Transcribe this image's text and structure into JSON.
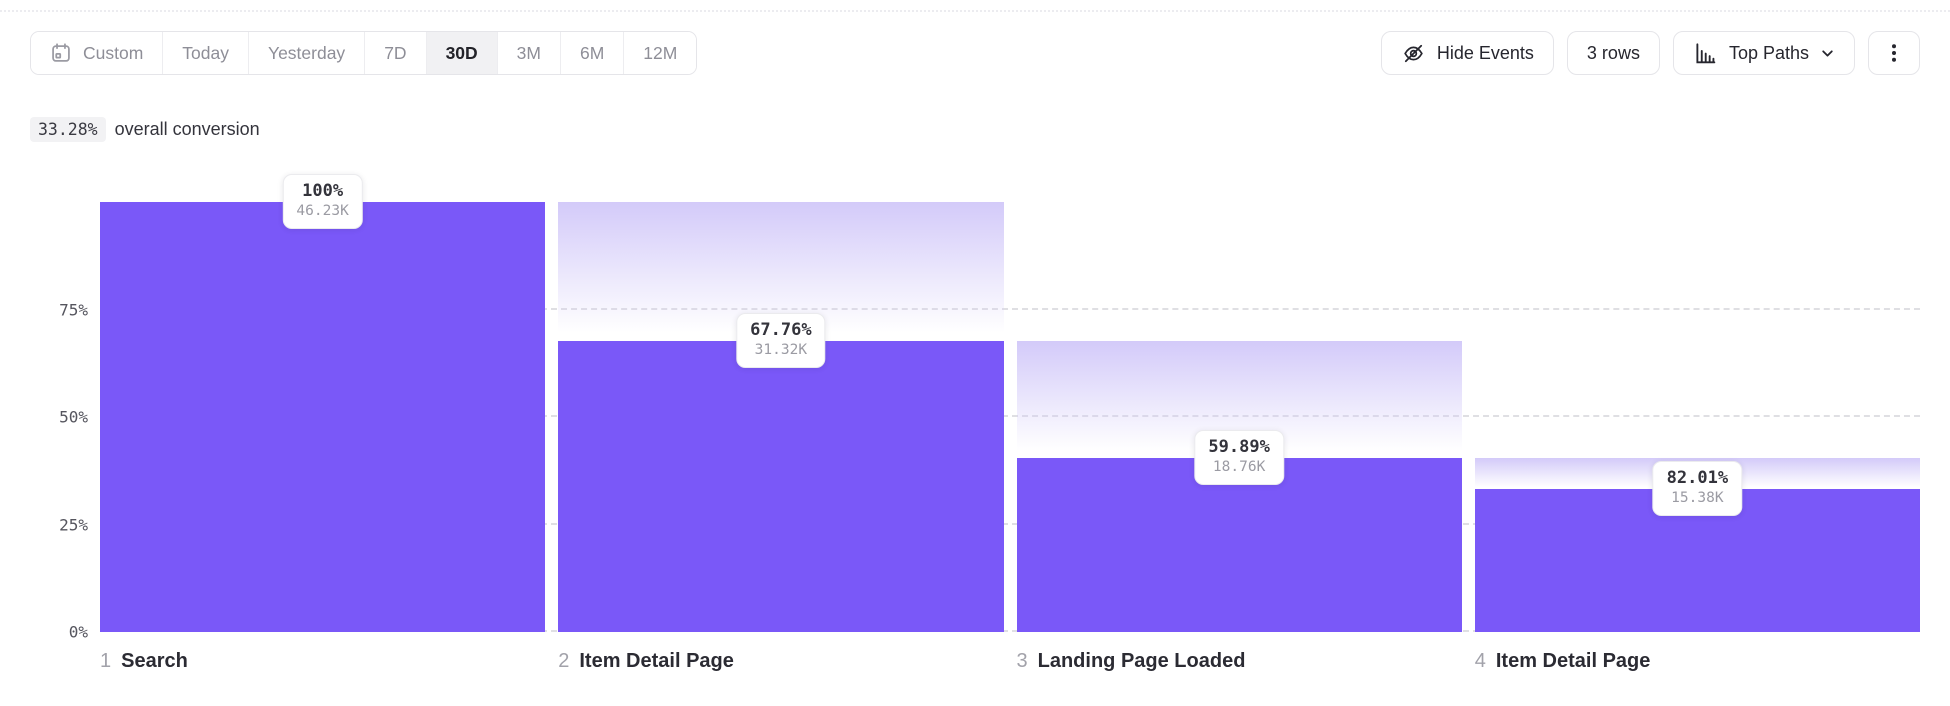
{
  "toolbar": {
    "date_ranges": [
      {
        "label": "Custom",
        "icon": "calendar",
        "selected": false
      },
      {
        "label": "Today",
        "selected": false
      },
      {
        "label": "Yesterday",
        "selected": false
      },
      {
        "label": "7D",
        "selected": false
      },
      {
        "label": "30D",
        "selected": true
      },
      {
        "label": "3M",
        "selected": false
      },
      {
        "label": "6M",
        "selected": false
      },
      {
        "label": "12M",
        "selected": false
      }
    ],
    "hide_events_label": "Hide Events",
    "rows_label": "3 rows",
    "top_paths_label": "Top Paths"
  },
  "summary": {
    "value": "33.28%",
    "label": "overall conversion"
  },
  "chart_data": {
    "type": "bar",
    "subtype": "funnel",
    "title": "33.28% overall conversion",
    "ylim": [
      0,
      100
    ],
    "grid": "dashed horizontal lines at 0/25/50/75",
    "legend": "none",
    "y_ticks": [
      {
        "label": "75%",
        "value": 75
      },
      {
        "label": "50%",
        "value": 50
      },
      {
        "label": "25%",
        "value": 25
      },
      {
        "label": "0%",
        "value": 0
      }
    ],
    "steps": [
      {
        "index": "1",
        "label": "Search",
        "conversion_pct": "100%",
        "count": "46.23K",
        "cumulative_pct": 100
      },
      {
        "index": "2",
        "label": "Item Detail Page",
        "conversion_pct": "67.76%",
        "count": "31.32K",
        "cumulative_pct": 67.76
      },
      {
        "index": "3",
        "label": "Landing Page Loaded",
        "conversion_pct": "59.89%",
        "count": "18.76K",
        "cumulative_pct": 40.58
      },
      {
        "index": "4",
        "label": "Item Detail Page",
        "conversion_pct": "82.01%",
        "count": "15.38K",
        "cumulative_pct": 33.28
      }
    ],
    "colors": {
      "bar": "#7A58F8",
      "dropoff_gradient_top": "#D3CAF9",
      "gridline": "#dfdfe3"
    }
  }
}
